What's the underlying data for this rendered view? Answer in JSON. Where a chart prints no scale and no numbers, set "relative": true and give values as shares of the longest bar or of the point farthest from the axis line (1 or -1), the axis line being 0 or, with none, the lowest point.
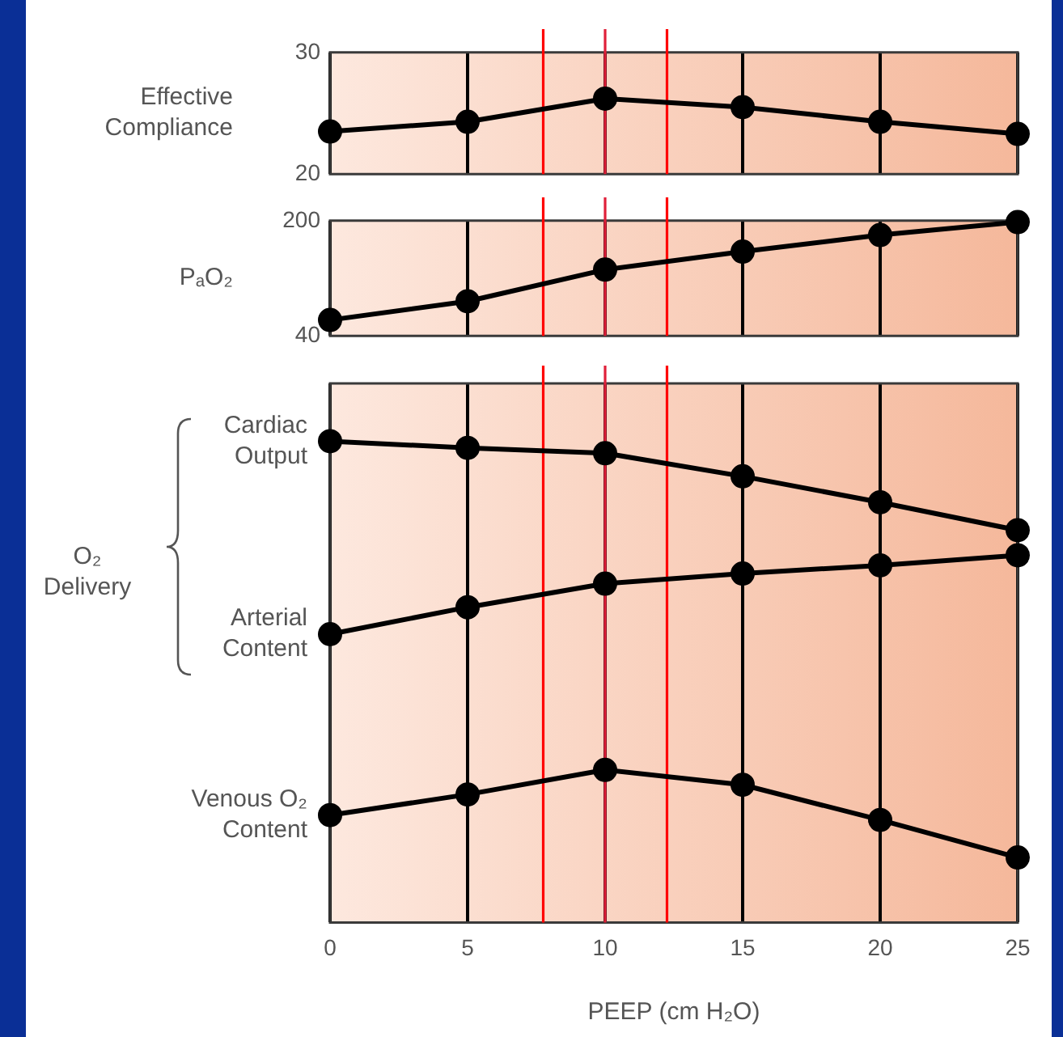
{
  "chart_data": [
    {
      "type": "line",
      "ylabel": "Effective Compliance",
      "x": [
        0,
        5,
        10,
        15,
        20,
        25
      ],
      "xlim": [
        0,
        25
      ],
      "xticks": [
        0,
        5,
        10,
        15,
        20,
        25
      ],
      "ylim": [
        20,
        30
      ],
      "yticks": [
        20,
        30
      ],
      "grid": "x",
      "tick_labels": "y",
      "marker": "circle",
      "series": [
        {
          "color": "#000000",
          "values": [
            23.5,
            24.3,
            26.2,
            25.5,
            24.3,
            23.3
          ]
        }
      ],
      "ref_lines": [
        {
          "axis": "x",
          "value": 7.75,
          "color": "#ff0000"
        },
        {
          "axis": "x",
          "value": 10,
          "color": "#e0203a"
        },
        {
          "axis": "x",
          "value": 12.25,
          "color": "#ff0000"
        }
      ]
    },
    {
      "type": "line",
      "ylabel": "PₐO₂",
      "x": [
        0,
        5,
        10,
        15,
        20,
        25
      ],
      "xlim": [
        0,
        25
      ],
      "xticks": [
        0,
        5,
        10,
        15,
        20,
        25
      ],
      "ylim": [
        40,
        200
      ],
      "yticks": [
        40,
        200
      ],
      "grid": "x",
      "tick_labels": "y",
      "marker": "circle",
      "series": [
        {
          "color": "#000000",
          "values": [
            62,
            88,
            132,
            157,
            180,
            198
          ]
        }
      ],
      "ref_lines": [
        {
          "axis": "x",
          "value": 7.75,
          "color": "#ff0000"
        },
        {
          "axis": "x",
          "value": 10,
          "color": "#e0203a"
        },
        {
          "axis": "x",
          "value": 12.25,
          "color": "#ff0000"
        }
      ]
    },
    {
      "type": "line",
      "ylabel": "O₂ Delivery",
      "xlabel": "PEEP (cm H₂O)",
      "x": [
        0,
        5,
        10,
        15,
        20,
        25
      ],
      "xlim": [
        0,
        25
      ],
      "xticks": [
        0,
        5,
        10,
        15,
        20,
        25
      ],
      "relative": true,
      "grid": "x",
      "tick_labels": "x",
      "marker": "circle",
      "series": [
        {
          "name": "Cardiac Output",
          "color": "#000000",
          "values": [
            1,
            0.986,
            0.975,
            0.927,
            0.873,
            0.815
          ]
        },
        {
          "name": "Arterial Content",
          "color": "#000000",
          "values": [
            0.599,
            0.655,
            0.704,
            0.725,
            0.742,
            0.763
          ]
        },
        {
          "name": "Venous O₂ Content",
          "color": "#000000",
          "values": [
            0.223,
            0.266,
            0.317,
            0.286,
            0.213,
            0.135
          ]
        }
      ],
      "ref_lines": [
        {
          "axis": "x",
          "value": 7.75,
          "color": "#ff0000"
        },
        {
          "axis": "x",
          "value": 10,
          "color": "#e0203a"
        },
        {
          "axis": "x",
          "value": 12.25,
          "color": "#ff0000"
        }
      ]
    }
  ]
}
